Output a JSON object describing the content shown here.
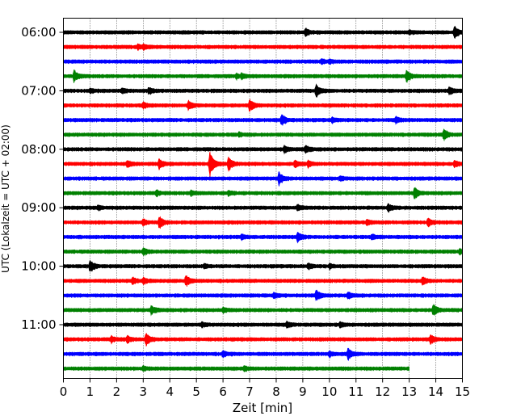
{
  "chart_data": {
    "type": "line",
    "title": "",
    "xlabel": "Zeit  [min]",
    "ylabel": "UTC (Lokalzeit = UTC + 02:00)",
    "xlim": [
      0,
      15
    ],
    "xticks": [
      0,
      1,
      2,
      3,
      4,
      5,
      6,
      7,
      8,
      9,
      10,
      11,
      12,
      13,
      14,
      15
    ],
    "xtick_labels": [
      "0",
      "1",
      "2",
      "3",
      "4",
      "5",
      "6",
      "7",
      "8",
      "9",
      "10",
      "11",
      "12",
      "13",
      "14",
      "15"
    ],
    "ytick_labels": [
      {
        "label": "06:00",
        "row": 0
      },
      {
        "label": "07:00",
        "row": 4
      },
      {
        "label": "08:00",
        "row": 8
      },
      {
        "label": "09:00",
        "row": 12
      },
      {
        "label": "10:00",
        "row": 16
      },
      {
        "label": "11:00",
        "row": 20
      }
    ],
    "grid": "vertical dotted",
    "trace_colors": [
      "#000000",
      "#ff0000",
      "#0000ff",
      "#008000"
    ],
    "rows": [
      {
        "start": "06:00",
        "color": "#000000",
        "end_min": 15,
        "events": [
          [
            9.1,
            0.6
          ],
          [
            14.7,
            1.0
          ],
          [
            13.0,
            0.3
          ]
        ]
      },
      {
        "start": "06:15",
        "color": "#ff0000",
        "end_min": 15,
        "events": [
          [
            2.8,
            0.35
          ],
          [
            3.0,
            0.3
          ]
        ]
      },
      {
        "start": "06:30",
        "color": "#0000ff",
        "end_min": 15,
        "events": [
          [
            9.7,
            0.35
          ],
          [
            10.0,
            0.3
          ]
        ]
      },
      {
        "start": "06:45",
        "color": "#008000",
        "end_min": 15,
        "events": [
          [
            0.4,
            1.0
          ],
          [
            12.9,
            0.95
          ],
          [
            6.5,
            0.35
          ],
          [
            6.7,
            0.35
          ]
        ]
      },
      {
        "start": "07:00",
        "color": "#000000",
        "end_min": 15,
        "events": [
          [
            9.5,
            1.0
          ],
          [
            14.5,
            0.6
          ],
          [
            1.0,
            0.35
          ],
          [
            2.2,
            0.4
          ],
          [
            3.2,
            0.5
          ]
        ]
      },
      {
        "start": "07:15",
        "color": "#ff0000",
        "end_min": 15,
        "events": [
          [
            7.0,
            1.0
          ],
          [
            4.7,
            0.7
          ],
          [
            3.0,
            0.45
          ]
        ]
      },
      {
        "start": "07:30",
        "color": "#0000ff",
        "end_min": 15,
        "events": [
          [
            8.2,
            1.0
          ],
          [
            10.1,
            0.35
          ],
          [
            12.5,
            0.45
          ]
        ]
      },
      {
        "start": "07:45",
        "color": "#008000",
        "end_min": 15,
        "events": [
          [
            14.3,
            1.0
          ],
          [
            6.6,
            0.35
          ]
        ]
      },
      {
        "start": "08:00",
        "color": "#000000",
        "end_min": 15,
        "events": [
          [
            8.3,
            0.45
          ],
          [
            9.1,
            0.55
          ]
        ]
      },
      {
        "start": "08:15",
        "color": "#ff0000",
        "end_min": 15,
        "events": [
          [
            5.5,
            2.2
          ],
          [
            6.2,
            1.2
          ],
          [
            3.6,
            0.8
          ],
          [
            2.4,
            0.5
          ],
          [
            8.7,
            0.5
          ],
          [
            9.2,
            0.45
          ],
          [
            14.7,
            0.55
          ]
        ]
      },
      {
        "start": "08:30",
        "color": "#0000ff",
        "end_min": 15,
        "events": [
          [
            8.1,
            1.0
          ],
          [
            10.4,
            0.35
          ]
        ]
      },
      {
        "start": "08:45",
        "color": "#008000",
        "end_min": 15,
        "events": [
          [
            13.2,
            1.0
          ],
          [
            3.5,
            0.45
          ],
          [
            4.8,
            0.35
          ],
          [
            6.2,
            0.35
          ]
        ]
      },
      {
        "start": "09:00",
        "color": "#000000",
        "end_min": 15,
        "events": [
          [
            8.8,
            0.45
          ],
          [
            12.2,
            0.55
          ],
          [
            1.3,
            0.3
          ]
        ]
      },
      {
        "start": "09:15",
        "color": "#ff0000",
        "end_min": 15,
        "events": [
          [
            3.6,
            1.0
          ],
          [
            13.7,
            0.7
          ],
          [
            3.0,
            0.45
          ],
          [
            11.4,
            0.4
          ]
        ]
      },
      {
        "start": "09:30",
        "color": "#0000ff",
        "end_min": 15,
        "events": [
          [
            8.8,
            0.9
          ],
          [
            6.7,
            0.4
          ],
          [
            11.6,
            0.35
          ]
        ]
      },
      {
        "start": "09:45",
        "color": "#008000",
        "end_min": 15,
        "events": [
          [
            3.0,
            0.6
          ],
          [
            14.9,
            0.35
          ]
        ]
      },
      {
        "start": "10:00",
        "color": "#000000",
        "end_min": 15,
        "events": [
          [
            1.0,
            1.0
          ],
          [
            9.2,
            0.45
          ],
          [
            10.0,
            0.35
          ],
          [
            5.3,
            0.3
          ]
        ]
      },
      {
        "start": "10:15",
        "color": "#ff0000",
        "end_min": 15,
        "events": [
          [
            4.6,
            1.0
          ],
          [
            2.6,
            0.55
          ],
          [
            13.5,
            0.6
          ],
          [
            3.0,
            0.45
          ]
        ]
      },
      {
        "start": "10:30",
        "color": "#0000ff",
        "end_min": 15,
        "events": [
          [
            9.5,
            0.9
          ],
          [
            10.7,
            0.5
          ],
          [
            7.9,
            0.35
          ]
        ]
      },
      {
        "start": "10:45",
        "color": "#008000",
        "end_min": 15,
        "events": [
          [
            13.9,
            1.0
          ],
          [
            3.3,
            0.7
          ],
          [
            6.0,
            0.4
          ]
        ]
      },
      {
        "start": "11:00",
        "color": "#000000",
        "end_min": 15,
        "events": [
          [
            8.4,
            0.45
          ],
          [
            10.4,
            0.35
          ],
          [
            5.2,
            0.3
          ]
        ]
      },
      {
        "start": "11:15",
        "color": "#ff0000",
        "end_min": 15,
        "events": [
          [
            3.1,
            1.0
          ],
          [
            13.8,
            0.7
          ],
          [
            1.8,
            0.5
          ],
          [
            2.4,
            0.5
          ]
        ]
      },
      {
        "start": "11:30",
        "color": "#0000ff",
        "end_min": 15,
        "events": [
          [
            10.7,
            0.9
          ],
          [
            6.0,
            0.45
          ],
          [
            10.0,
            0.35
          ]
        ]
      },
      {
        "start": "11:45",
        "color": "#008000",
        "end_min": 13.0,
        "events": [
          [
            3.0,
            0.35
          ],
          [
            6.8,
            0.3
          ]
        ]
      }
    ]
  }
}
